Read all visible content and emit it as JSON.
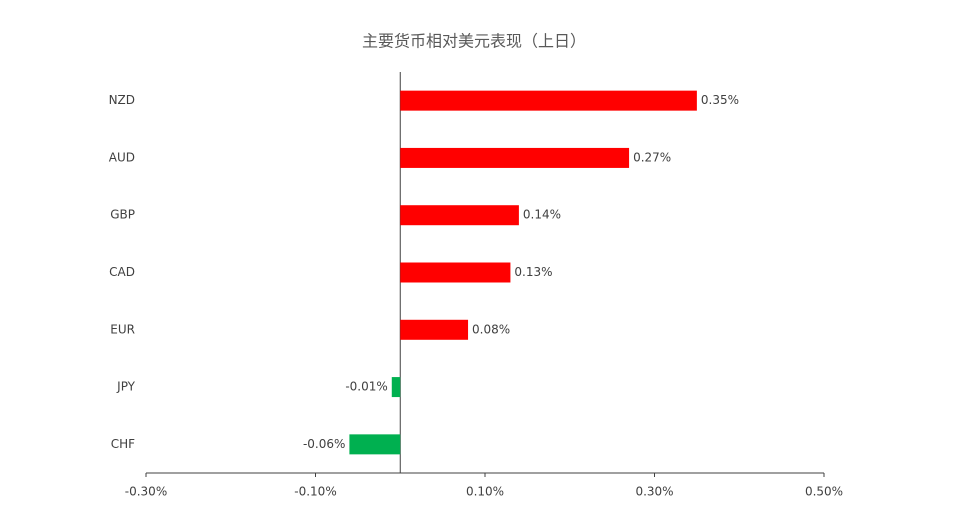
{
  "chart_data": {
    "type": "barh",
    "title": "主要货币相对美元表现（上日）",
    "categories": [
      "NZD",
      "AUD",
      "GBP",
      "CAD",
      "EUR",
      "JPY",
      "CHF"
    ],
    "values": [
      0.35,
      0.27,
      0.14,
      0.13,
      0.08,
      -0.01,
      -0.06
    ],
    "value_labels": [
      "0.35%",
      "0.27%",
      "0.14%",
      "0.13%",
      "0.08%",
      "-0.01%",
      "-0.06%"
    ],
    "colors": [
      "#ff0000",
      "#ff0000",
      "#ff0000",
      "#ff0000",
      "#ff0000",
      "#00b050",
      "#00b050"
    ],
    "xlim": [
      -0.3,
      0.5
    ],
    "xticks": [
      {
        "value": -0.3,
        "label": "-0.30%"
      },
      {
        "value": -0.1,
        "label": "-0.10%"
      },
      {
        "value": 0.1,
        "label": "0.10%"
      },
      {
        "value": 0.3,
        "label": "0.30%"
      },
      {
        "value": 0.5,
        "label": "0.50%"
      }
    ],
    "grid": false
  }
}
